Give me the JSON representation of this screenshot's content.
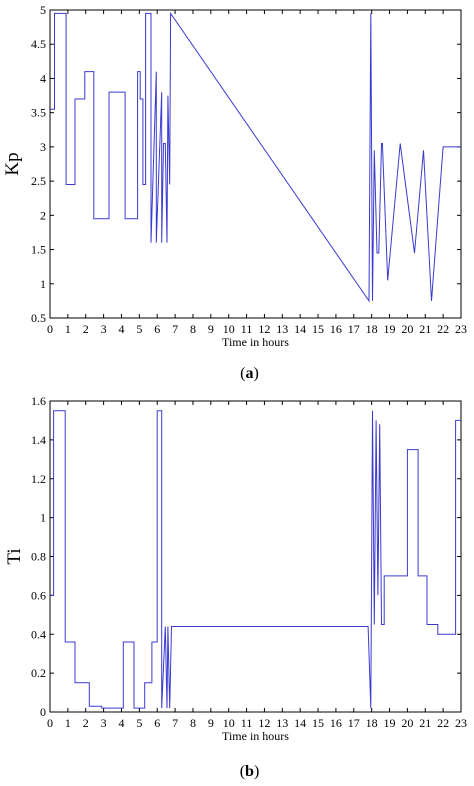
{
  "chart_data": [
    {
      "type": "line",
      "panel": "a",
      "caption": "(a)",
      "caption_letter": "a",
      "xlabel": "Time in hours",
      "ylabel": "Kp",
      "xlim": [
        0,
        23
      ],
      "ylim": [
        0.5,
        5
      ],
      "xticks": [
        0,
        1,
        2,
        3,
        4,
        5,
        6,
        7,
        8,
        9,
        10,
        11,
        12,
        13,
        14,
        15,
        16,
        17,
        18,
        19,
        20,
        21,
        22,
        23
      ],
      "yticks": [
        0.5,
        1,
        1.5,
        2,
        2.5,
        3,
        3.5,
        4,
        4.5,
        5
      ],
      "ytick_labels": [
        "0.5",
        "1",
        "1.5",
        "2",
        "2.5",
        "3",
        "3.5",
        "4",
        "4.5",
        "5"
      ],
      "grid": false,
      "color": "#3a3ad0",
      "series": [
        {
          "step": true,
          "x": [
            0,
            0.25,
            0.25,
            0.9,
            0.9,
            1.4,
            1.4,
            1.95,
            1.95,
            2.45,
            2.45,
            3.3,
            3.3,
            4.2,
            4.2,
            4.9,
            4.9,
            5.05,
            5.05,
            5.2,
            5.2,
            5.35,
            5.35,
            5.65,
            5.65,
            5.95,
            5.95,
            6.25,
            6.25,
            6.35,
            6.45,
            6.55,
            6.6,
            6.7,
            6.75,
            17.85,
            17.95,
            18.05,
            18.15,
            18.3,
            18.4,
            18.55,
            18.6,
            18.9,
            18.9,
            19.6,
            19.6,
            20.4,
            20.4,
            20.9,
            20.9,
            21.35,
            21.35,
            22.0,
            22.0,
            22.8,
            22.8,
            23.0
          ],
          "y": [
            3.55,
            3.55,
            4.95,
            4.95,
            2.45,
            2.45,
            3.7,
            3.7,
            4.1,
            4.1,
            1.95,
            1.95,
            3.8,
            3.8,
            1.95,
            1.95,
            4.1,
            4.1,
            3.7,
            3.7,
            2.45,
            2.45,
            4.95,
            4.95,
            1.6,
            4.1,
            1.6,
            3.8,
            1.6,
            3.05,
            3.05,
            1.6,
            3.75,
            2.45,
            4.95,
            0.75,
            4.95,
            0.75,
            2.95,
            1.45,
            1.45,
            3.05,
            3.05,
            1.05,
            1.05,
            3.05,
            3.05,
            1.45,
            1.45,
            2.95,
            2.95,
            0.75,
            0.75,
            3.0,
            3.0,
            3.0,
            3.0,
            3.0
          ]
        }
      ]
    },
    {
      "type": "line",
      "panel": "b",
      "caption": "(b)",
      "caption_letter": "b",
      "xlabel": "Time in hours",
      "ylabel": "Ti",
      "xlim": [
        0,
        23
      ],
      "ylim": [
        0,
        1.6
      ],
      "xticks": [
        0,
        1,
        2,
        3,
        4,
        5,
        6,
        7,
        8,
        9,
        10,
        11,
        12,
        13,
        14,
        15,
        16,
        17,
        18,
        19,
        20,
        21,
        22,
        23
      ],
      "yticks": [
        0,
        0.2,
        0.4,
        0.6,
        0.8,
        1,
        1.2,
        1.4,
        1.6
      ],
      "ytick_labels": [
        "0",
        "0.2",
        "0.4",
        "0.6",
        "0.8",
        "1",
        "1.2",
        "1.4",
        "1.6"
      ],
      "grid": false,
      "color": "#3a3ad0",
      "series": [
        {
          "step": true,
          "x": [
            0,
            0.2,
            0.2,
            0.85,
            0.85,
            1.4,
            1.4,
            2.2,
            2.2,
            2.9,
            2.9,
            3.5,
            3.5,
            4.1,
            4.1,
            4.7,
            4.7,
            5.3,
            5.3,
            5.7,
            5.7,
            6.0,
            6.0,
            6.25,
            6.25,
            6.45,
            6.55,
            6.6,
            6.7,
            6.8,
            6.85,
            17.8,
            17.95,
            18.05,
            18.15,
            18.25,
            18.35,
            18.45,
            18.55,
            18.7,
            18.7,
            19.3,
            19.3,
            20.0,
            20.0,
            20.6,
            20.6,
            21.1,
            21.1,
            21.7,
            21.7,
            22.7,
            22.7,
            23.0
          ],
          "y": [
            0.6,
            0.6,
            1.55,
            1.55,
            0.36,
            0.36,
            0.15,
            0.15,
            0.03,
            0.03,
            0.02,
            0.02,
            0.02,
            0.02,
            0.36,
            0.36,
            0.02,
            0.02,
            0.15,
            0.15,
            0.36,
            0.36,
            1.55,
            1.55,
            0.02,
            0.44,
            0.02,
            0.44,
            0.02,
            0.44,
            0.44,
            0.44,
            0.02,
            1.55,
            0.45,
            1.5,
            0.6,
            1.48,
            0.45,
            0.45,
            0.7,
            0.7,
            0.7,
            0.7,
            1.35,
            1.35,
            0.7,
            0.7,
            0.45,
            0.45,
            0.4,
            0.4,
            1.5,
            1.5
          ]
        }
      ]
    }
  ]
}
